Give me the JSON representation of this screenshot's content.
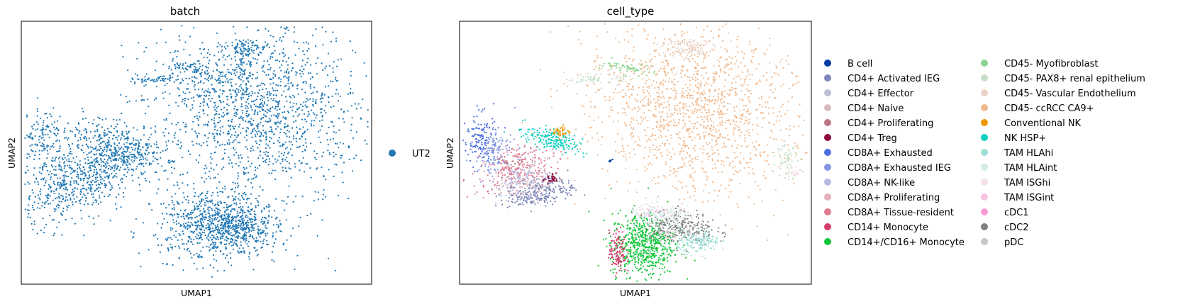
{
  "chart_data": [
    {
      "type": "scatter",
      "title": "batch",
      "xlabel": "UMAP1",
      "ylabel": "UMAP2",
      "grid": false,
      "legend_position": "right",
      "legend": [
        {
          "name": "UT2",
          "color": "#1f77b4"
        }
      ],
      "clusters": [
        {
          "category": "UT2",
          "x": 0.67,
          "y": 0.66,
          "sx": 0.15,
          "sy": 0.16,
          "rot": 28,
          "n": 1500
        },
        {
          "category": "UT2",
          "x": 0.17,
          "y": 0.4,
          "sx": 0.11,
          "sy": 0.06,
          "rot": 35,
          "n": 700
        },
        {
          "category": "UT2",
          "x": 0.27,
          "y": 0.53,
          "sx": 0.07,
          "sy": 0.04,
          "rot": -25,
          "n": 300
        },
        {
          "category": "UT2",
          "x": 0.06,
          "y": 0.56,
          "sx": 0.03,
          "sy": 0.06,
          "rot": 0,
          "n": 150
        },
        {
          "category": "UT2",
          "x": 0.55,
          "y": 0.22,
          "sx": 0.08,
          "sy": 0.07,
          "rot": -10,
          "n": 700
        },
        {
          "category": "UT2",
          "x": 0.62,
          "y": 0.22,
          "sx": 0.06,
          "sy": 0.04,
          "rot": -10,
          "n": 300
        },
        {
          "category": "UT2",
          "x": 0.65,
          "y": 0.9,
          "sx": 0.03,
          "sy": 0.015,
          "rot": 0,
          "n": 80
        },
        {
          "category": "UT2",
          "x": 0.63,
          "y": 0.84,
          "sx": 0.005,
          "sy": 0.03,
          "rot": 0,
          "n": 30
        },
        {
          "category": "UT2",
          "x": 0.49,
          "y": 0.82,
          "sx": 0.04,
          "sy": 0.01,
          "rot": -10,
          "n": 60
        },
        {
          "category": "UT2",
          "x": 0.4,
          "y": 0.78,
          "sx": 0.05,
          "sy": 0.008,
          "rot": 0,
          "n": 60
        },
        {
          "category": "UT2",
          "x": 0.43,
          "y": 0.47,
          "sx": 0.005,
          "sy": 0.005,
          "rot": 0,
          "n": 6
        }
      ]
    },
    {
      "type": "scatter",
      "title": "cell_type",
      "xlabel": "UMAP1",
      "ylabel": "UMAP2",
      "grid": false,
      "legend_position": "right",
      "legend": [
        {
          "name": "B cell",
          "color": "#023fa5"
        },
        {
          "name": "CD4+ Activated IEG",
          "color": "#7d87b9"
        },
        {
          "name": "CD4+ Effector",
          "color": "#bec1d4"
        },
        {
          "name": "CD4+ Naive",
          "color": "#d6bcc0"
        },
        {
          "name": "CD4+ Proliferating",
          "color": "#bb7784"
        },
        {
          "name": "CD4+ Treg",
          "color": "#8e063b"
        },
        {
          "name": "CD8A+ Exhausted",
          "color": "#4a6fe3"
        },
        {
          "name": "CD8A+ Exhausted IEG",
          "color": "#8595e1"
        },
        {
          "name": "CD8A+ NK-like",
          "color": "#b5bbe3"
        },
        {
          "name": "CD8A+ Proliferating",
          "color": "#e6afb9"
        },
        {
          "name": "CD8A+ Tissue-resident",
          "color": "#e07b91"
        },
        {
          "name": "CD14+ Monocyte",
          "color": "#d33f6a"
        },
        {
          "name": "CD14+/CD16+ Monocyte",
          "color": "#11c638"
        },
        {
          "name": "CD45- Myofibroblast",
          "color": "#8dd593"
        },
        {
          "name": "CD45- PAX8+ renal epithelium",
          "color": "#c6dec7"
        },
        {
          "name": "CD45- Vascular Endothelium",
          "color": "#ead3c6"
        },
        {
          "name": "CD45- ccRCC CA9+",
          "color": "#f0b98d"
        },
        {
          "name": "Conventional NK",
          "color": "#ef9708"
        },
        {
          "name": "NK HSP+",
          "color": "#0fcfc0"
        },
        {
          "name": "TAM HLAhi",
          "color": "#9cded6"
        },
        {
          "name": "TAM HLAint",
          "color": "#d5eae7"
        },
        {
          "name": "TAM ISGhi",
          "color": "#f3e1eb"
        },
        {
          "name": "TAM ISGint",
          "color": "#f6c4e1"
        },
        {
          "name": "cDC1",
          "color": "#f79cd4"
        },
        {
          "name": "cDC2",
          "color": "#7f7f7f"
        },
        {
          "name": "pDC",
          "color": "#c7c7c7"
        }
      ],
      "clusters": [
        {
          "category": "CD45- ccRCC CA9+",
          "x": 0.67,
          "y": 0.66,
          "sx": 0.15,
          "sy": 0.16,
          "rot": 28,
          "n": 1500
        },
        {
          "category": "CD45- PAX8+ renal epithelium",
          "x": 0.93,
          "y": 0.48,
          "sx": 0.015,
          "sy": 0.04,
          "rot": 0,
          "n": 60
        },
        {
          "category": "TAM ISGhi",
          "x": 0.95,
          "y": 0.43,
          "sx": 0.01,
          "sy": 0.01,
          "rot": 0,
          "n": 20
        },
        {
          "category": "CD45- Vascular Endothelium",
          "x": 0.64,
          "y": 0.9,
          "sx": 0.04,
          "sy": 0.02,
          "rot": 0,
          "n": 120
        },
        {
          "category": "CD45- Myofibroblast",
          "x": 0.49,
          "y": 0.82,
          "sx": 0.04,
          "sy": 0.01,
          "rot": -10,
          "n": 60
        },
        {
          "category": "CD45- PAX8+ renal epithelium",
          "x": 0.39,
          "y": 0.78,
          "sx": 0.04,
          "sy": 0.008,
          "rot": 0,
          "n": 60
        },
        {
          "category": "B cell",
          "x": 0.43,
          "y": 0.47,
          "sx": 0.005,
          "sy": 0.005,
          "rot": 0,
          "n": 6
        },
        {
          "category": "CD8A+ Exhausted",
          "x": 0.06,
          "y": 0.55,
          "sx": 0.025,
          "sy": 0.05,
          "rot": 0,
          "n": 150
        },
        {
          "category": "CD8A+ Exhausted IEG",
          "x": 0.1,
          "y": 0.5,
          "sx": 0.03,
          "sy": 0.04,
          "rot": 0,
          "n": 120
        },
        {
          "category": "CD8A+ Tissue-resident",
          "x": 0.16,
          "y": 0.43,
          "sx": 0.06,
          "sy": 0.04,
          "rot": 30,
          "n": 250
        },
        {
          "category": "CD4+ Activated IEG",
          "x": 0.23,
          "y": 0.35,
          "sx": 0.05,
          "sy": 0.025,
          "rot": 15,
          "n": 250
        },
        {
          "category": "CD8A+ NK-like",
          "x": 0.18,
          "y": 0.4,
          "sx": 0.05,
          "sy": 0.03,
          "rot": 25,
          "n": 100
        },
        {
          "category": "CD4+ Naive",
          "x": 0.2,
          "y": 0.38,
          "sx": 0.04,
          "sy": 0.03,
          "rot": 25,
          "n": 60
        },
        {
          "category": "CD4+ Treg",
          "x": 0.26,
          "y": 0.4,
          "sx": 0.01,
          "sy": 0.01,
          "rot": 0,
          "n": 30
        },
        {
          "category": "CD4+ Proliferating",
          "x": 0.15,
          "y": 0.46,
          "sx": 0.02,
          "sy": 0.02,
          "rot": 0,
          "n": 20
        },
        {
          "category": "NK HSP+",
          "x": 0.26,
          "y": 0.55,
          "sx": 0.04,
          "sy": 0.02,
          "rot": -25,
          "n": 200
        },
        {
          "category": "Conventional NK",
          "x": 0.29,
          "y": 0.58,
          "sx": 0.012,
          "sy": 0.012,
          "rot": 0,
          "n": 40
        },
        {
          "category": "CD14+/CD16+ Monocyte",
          "x": 0.52,
          "y": 0.15,
          "sx": 0.045,
          "sy": 0.06,
          "rot": 0,
          "n": 600
        },
        {
          "category": "CD14+ Monocyte",
          "x": 0.45,
          "y": 0.12,
          "sx": 0.012,
          "sy": 0.04,
          "rot": 0,
          "n": 120
        },
        {
          "category": "cDC2",
          "x": 0.63,
          "y": 0.22,
          "sx": 0.05,
          "sy": 0.03,
          "rot": -10,
          "n": 250
        },
        {
          "category": "TAM HLAhi",
          "x": 0.68,
          "y": 0.16,
          "sx": 0.03,
          "sy": 0.02,
          "rot": 0,
          "n": 150
        },
        {
          "category": "TAM HLAint",
          "x": 0.58,
          "y": 0.26,
          "sx": 0.05,
          "sy": 0.02,
          "rot": 0,
          "n": 150
        },
        {
          "category": "pDC",
          "x": 0.58,
          "y": 0.2,
          "sx": 0.03,
          "sy": 0.02,
          "rot": 0,
          "n": 40
        },
        {
          "category": "TAM ISGint",
          "x": 0.55,
          "y": 0.28,
          "sx": 0.03,
          "sy": 0.01,
          "rot": 0,
          "n": 30
        }
      ]
    }
  ]
}
